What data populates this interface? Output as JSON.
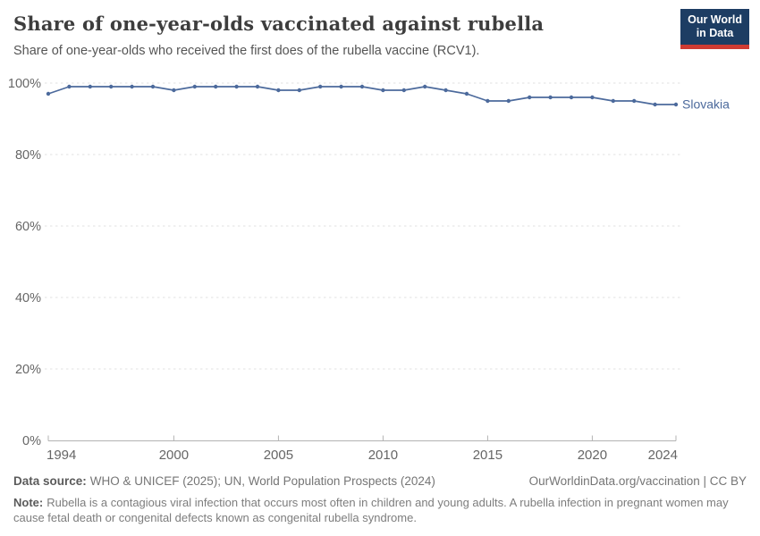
{
  "header": {
    "title": "Share of one-year-olds vaccinated against rubella",
    "subtitle": "Share of one-year-olds who received the first does of the rubella vaccine (RCV1).",
    "logo": {
      "line1": "Our World",
      "line2": "in Data",
      "background": "#1d3d63",
      "accent": "#cf3b32"
    }
  },
  "chart_data": {
    "type": "line",
    "title": "Share of one-year-olds vaccinated against rubella",
    "xlabel": "",
    "ylabel": "",
    "xlim": [
      1994,
      2024
    ],
    "ylim": [
      0,
      100
    ],
    "x_ticks": [
      1994,
      2000,
      2005,
      2010,
      2015,
      2020,
      2024
    ],
    "x_tick_labels": [
      "1994",
      "2000",
      "2005",
      "2010",
      "2015",
      "2020",
      "2024"
    ],
    "y_ticks": [
      0,
      20,
      40,
      60,
      80,
      100
    ],
    "y_tick_labels": [
      "0%",
      "20%",
      "40%",
      "60%",
      "80%",
      "100%"
    ],
    "grid": "horizontal-dashed",
    "legend_position": "end-of-line-label",
    "colors": {
      "grid": "#e2e2e2",
      "axis": "#b3b3b3",
      "tick_label": "#666666"
    },
    "series": [
      {
        "name": "Slovakia",
        "color": "#4c6a9c",
        "x": [
          1994,
          1995,
          1996,
          1997,
          1998,
          1999,
          2000,
          2001,
          2002,
          2003,
          2004,
          2005,
          2006,
          2007,
          2008,
          2009,
          2010,
          2011,
          2012,
          2013,
          2014,
          2015,
          2016,
          2017,
          2018,
          2019,
          2020,
          2021,
          2022,
          2023,
          2024
        ],
        "values": [
          97,
          99,
          99,
          99,
          99,
          99,
          98,
          99,
          99,
          99,
          99,
          98,
          98,
          99,
          99,
          99,
          98,
          98,
          99,
          98,
          97,
          95,
          95,
          96,
          96,
          96,
          96,
          95,
          95,
          94,
          94
        ]
      }
    ]
  },
  "footer": {
    "data_source_label": "Data source:",
    "data_source_text": "WHO & UNICEF (2025); UN, World Population Prospects (2024)",
    "attribution": "OurWorldinData.org/vaccination | CC BY",
    "note_label": "Note:",
    "note_text": "Rubella is a contagious viral infection that occurs most often in children and young adults. A rubella infection in pregnant women may cause fetal death or congenital defects known as congenital rubella syndrome."
  }
}
